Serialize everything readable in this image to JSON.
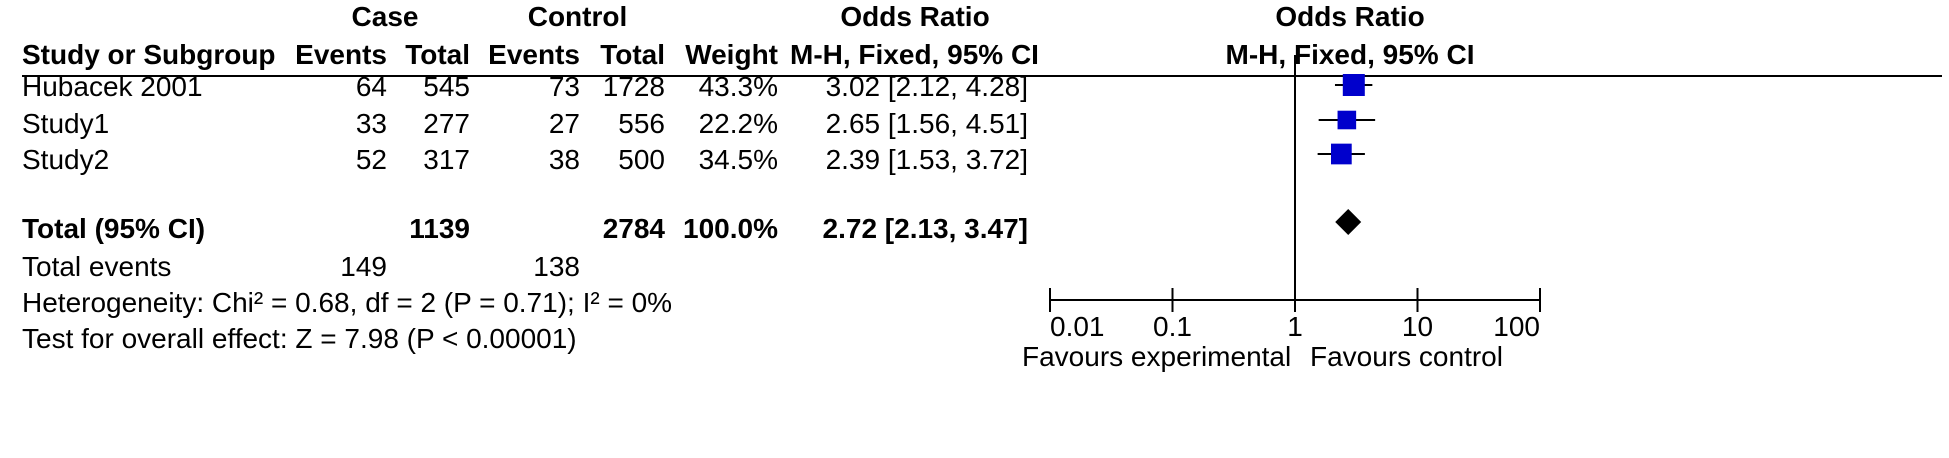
{
  "header": {
    "group1": "Case",
    "group2": "Control",
    "or_title_left": "Odds Ratio",
    "or_title_right": "Odds Ratio",
    "col_study": "Study or Subgroup",
    "col_events1": "Events",
    "col_total1": "Total",
    "col_events2": "Events",
    "col_total2": "Total",
    "col_weight": "Weight",
    "col_method_left": "M-H, Fixed, 95% CI",
    "col_method_right": "M-H, Fixed, 95% CI"
  },
  "rows": [
    {
      "study": "Hubacek  2001",
      "events1": "64",
      "total1": "545",
      "events2": "73",
      "total2": "1728",
      "weight": "43.3%",
      "ci_text": "3.02 [2.12, 4.28]"
    },
    {
      "study": "Study1",
      "events1": "33",
      "total1": "277",
      "events2": "27",
      "total2": "556",
      "weight": "22.2%",
      "ci_text": "2.65 [1.56, 4.51]"
    },
    {
      "study": "Study2",
      "events1": "52",
      "total1": "317",
      "events2": "38",
      "total2": "500",
      "weight": "34.5%",
      "ci_text": "2.39 [1.53, 3.72]"
    }
  ],
  "total_row": {
    "label": "Total (95% CI)",
    "total1": "1139",
    "total2": "2784",
    "weight": "100.0%",
    "ci_text": "2.72 [2.13, 3.47]"
  },
  "total_events": {
    "label": "Total events",
    "events1": "149",
    "events2": "138"
  },
  "heterogeneity": "Heterogeneity: Chi² = 0.68, df = 2 (P = 0.71); I² = 0%",
  "overall_effect": "Test for overall effect: Z = 7.98 (P < 0.00001)",
  "axis": {
    "favours_left": "Favours experimental",
    "favours_right": "Favours control"
  },
  "colors": {
    "marker": "#0000cc",
    "diamond": "#000000"
  },
  "chart_data": {
    "type": "scatter",
    "scale": "log",
    "xlim": [
      0.01,
      100
    ],
    "ticks": [
      0.01,
      0.1,
      1,
      10,
      100
    ],
    "tick_labels": [
      "0.01",
      "0.1",
      "1",
      "10",
      "100"
    ],
    "null_line": 1,
    "studies": [
      {
        "name": "Hubacek  2001",
        "or": 3.02,
        "lo": 2.12,
        "hi": 4.28,
        "weight": 43.3
      },
      {
        "name": "Study1",
        "or": 2.65,
        "lo": 1.56,
        "hi": 4.51,
        "weight": 22.2
      },
      {
        "name": "Study2",
        "or": 2.39,
        "lo": 1.53,
        "hi": 3.72,
        "weight": 34.5
      }
    ],
    "pooled": {
      "name": "Total (95% CI)",
      "or": 2.72,
      "lo": 2.13,
      "hi": 3.47
    }
  }
}
